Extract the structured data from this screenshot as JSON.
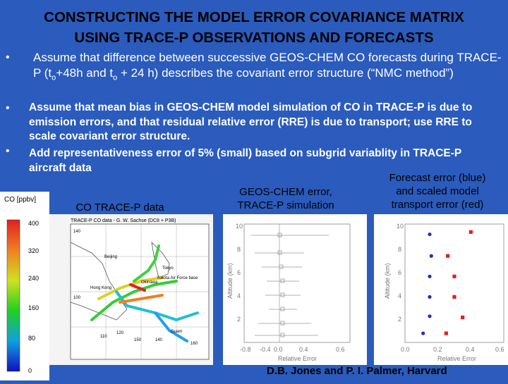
{
  "title": {
    "line1": "CONSTRUCTING THE MODEL ERROR COVARIANCE MATRIX",
    "line2": "USING TRACE-P OBSERVATIONS AND FORECASTS"
  },
  "bullets": {
    "b1": {
      "pre": "Assume that difference between successive GEOS-CHEM CO forecasts during TRACE-P (t",
      "sub1": "o",
      "mid": "+48h and t",
      "sub2": "o",
      "post": " + 24 h) describes the covariant error structure (“NMC method”)"
    },
    "b2": " Assume that mean bias in GEOS-CHEM model simulation of CO in TRACE-P is due to emission errors, and that  residual relative error (RRE) is due to transport; use RRE to scale covariant error structure.",
    "b3": "Add representativeness error of 5% (small) based on subgrid variablity in TRACE-P aircraft data"
  },
  "labels": {
    "co_data": "CO TRACE-P data",
    "geos_line1": "GEOS-CHEM error,",
    "geos_line2": "TRACE-P simulation",
    "fc_line1": "Forecast error (blue)",
    "fc_line2": "and scaled model",
    "fc_line3": "transport error (red)"
  },
  "colorbar": {
    "unit": "CO [ppbv]",
    "ticks": [
      "400",
      "320",
      "240",
      "160",
      "80",
      "0"
    ]
  },
  "map": {
    "caption": "TRACE-P CO data - G. W. Sachse (DC8 + P3B)",
    "places": [
      "Beijing",
      "Tokyo",
      "Okinawa",
      "Hong Kong",
      "Yokota Air Force base",
      "Guam"
    ],
    "numbers": [
      "140",
      "100",
      "110",
      "120",
      "140",
      "160",
      "150"
    ]
  },
  "plot_middle": {
    "yticks": [
      "10",
      "8",
      "6",
      "4",
      "2"
    ],
    "xticks": [
      "-0.8",
      "-0.4",
      "0.0",
      "0.4",
      "0.6"
    ],
    "ylabel": "Altitude (km)",
    "xlabel": "Relative Error"
  },
  "plot_right": {
    "yticks": [
      "10",
      "8",
      "6",
      "4",
      "2"
    ],
    "xticks": [
      "0.0",
      "0.2",
      "0.4",
      "0.6"
    ],
    "ylabel": "Altitude (km)",
    "xlabel": "Relative Error",
    "blue": [
      [
        0.15,
        9.5
      ],
      [
        0.16,
        7.6
      ],
      [
        0.15,
        5.8
      ],
      [
        0.15,
        4.0
      ],
      [
        0.15,
        2.3
      ],
      [
        0.11,
        0.8
      ]
    ],
    "red": [
      [
        0.4,
        9.7
      ],
      [
        0.26,
        7.6
      ],
      [
        0.3,
        5.8
      ],
      [
        0.3,
        4.0
      ],
      [
        0.35,
        2.2
      ],
      [
        0.25,
        0.8
      ]
    ]
  },
  "credit": "D.B. Jones and P. I. Palmer, Harvard"
}
